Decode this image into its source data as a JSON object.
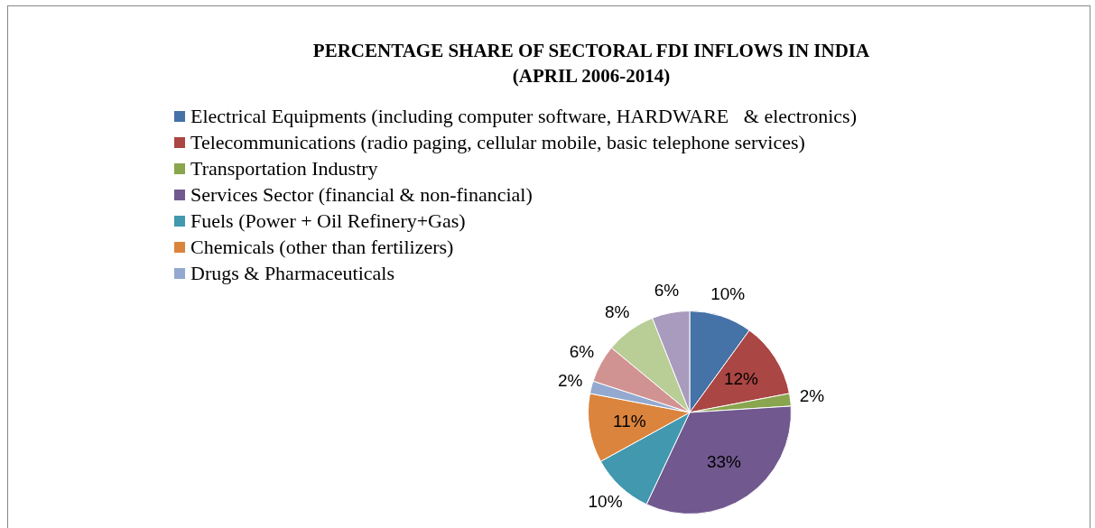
{
  "chart_data": {
    "type": "pie",
    "title": "PERCENTAGE SHARE OF SECTORAL FDI INFLOWS IN INDIA\n(APRIL 2006-2014)",
    "categories": [
      "Electrical Equipments (including computer software, HARDWARE   & electronics)",
      "Telecommunications (radio paging, cellular mobile, basic telephone services)",
      "Transportation Industry",
      "Services Sector (financial & non-financial)",
      "Fuels (Power + Oil Refinery+Gas)",
      "Chemicals (other than fertilizers)",
      "Drugs & Pharmaceuticals",
      null,
      null,
      null
    ],
    "values": [
      10,
      12,
      2,
      33,
      10,
      11,
      2,
      6,
      8,
      6
    ],
    "colors": [
      "#4572a7",
      "#aa4643",
      "#89a54e",
      "#71588f",
      "#4198af",
      "#db843d",
      "#93a9cf",
      "#d19392",
      "#b9cd96",
      "#a99bbd"
    ],
    "value_labels": [
      "10%",
      "12%",
      "2%",
      "33%",
      "10%",
      "11%",
      "2%",
      "6%",
      "8%",
      "6%"
    ],
    "legend": "top"
  }
}
